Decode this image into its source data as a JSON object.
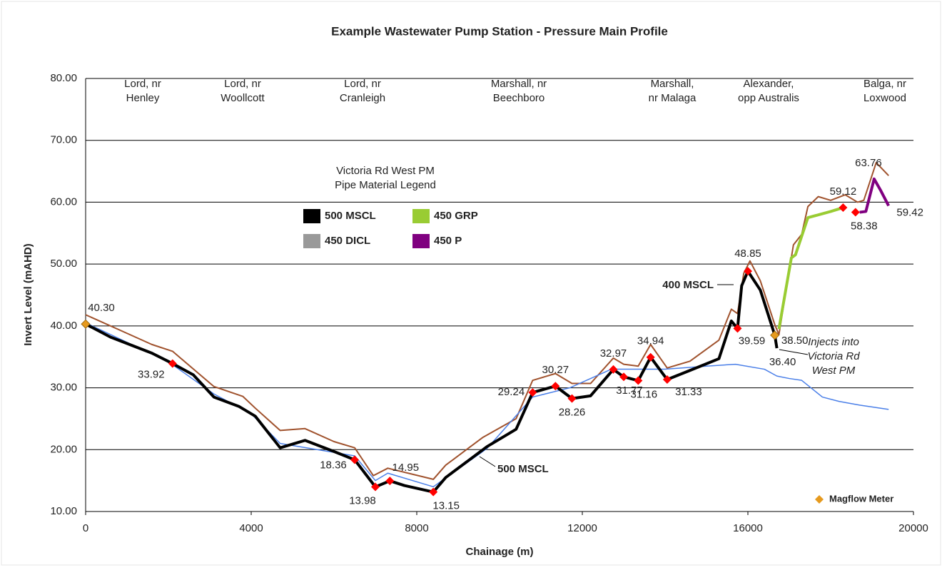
{
  "chart_data": {
    "type": "line",
    "title": "Example Wastewater Pump Station - Pressure Main Profile",
    "xlabel": "Chainage (m)",
    "ylabel": "Invert Level (mAHD)",
    "xlim": [
      0,
      20000
    ],
    "xticks": [
      0,
      4000,
      8000,
      12000,
      16000,
      20000
    ],
    "ylim": [
      10,
      80
    ],
    "yticks": [
      {
        "value": 10,
        "label": "10.00"
      },
      {
        "value": 20,
        "label": "20.00"
      },
      {
        "value": 30,
        "label": "30.00"
      },
      {
        "value": 40,
        "label": "40.00"
      },
      {
        "value": 50,
        "label": "50.00"
      },
      {
        "value": 60,
        "label": "60.00"
      },
      {
        "value": 70,
        "label": "70.00"
      },
      {
        "value": 80,
        "label": "80.00"
      }
    ],
    "grid": true,
    "section_labels": [
      [
        "Lord, nr",
        "Henley"
      ],
      [
        "Lord, nr",
        "Woollcott"
      ],
      [
        "Lord, nr",
        "Cranleigh"
      ],
      [
        "Marshall, nr",
        "Beechboro"
      ],
      [
        "Marshall,",
        "nr Malaga"
      ],
      [
        "Alexander,",
        "opp Australis"
      ],
      [
        "Balga, nr",
        "Loxwood"
      ]
    ],
    "series": [
      {
        "color": "#a0522d",
        "width": 2,
        "x": [
          0,
          1000,
          1600,
          2100,
          3100,
          3800,
          4100,
          4700,
          5300,
          6000,
          6500,
          6950,
          7300,
          8400,
          8700,
          9600,
          10400,
          10800,
          11350,
          11750,
          12200,
          12750,
          13000,
          13350,
          13650,
          14050,
          14600,
          15300,
          15600,
          15750,
          15900,
          16050,
          16300,
          16650,
          16750,
          17100,
          17300,
          17450,
          17700,
          18000,
          18350,
          18650,
          18800,
          19100,
          19400
        ],
        "values": [
          41.8,
          38.8,
          37,
          35.9,
          30.2,
          28.6,
          26.7,
          23.1,
          23.4,
          21.3,
          20.3,
          15.8,
          17,
          15.2,
          17.5,
          22,
          25,
          31.2,
          32.3,
          30.7,
          30.7,
          34.8,
          33.8,
          33.5,
          37,
          33.2,
          34.3,
          37.7,
          42.7,
          42,
          48.5,
          50.5,
          47.3,
          40.2,
          38.6,
          53.1,
          54.8,
          59.3,
          60.9,
          60.3,
          61.2,
          60,
          60.3,
          66.4,
          64.3
        ]
      },
      {
        "color": "#4a7fe8",
        "width": 1.5,
        "x": [
          0,
          2000,
          3100,
          4000,
          4700,
          6500,
          7000,
          7300,
          8400,
          9700,
          10800,
          11700,
          12700,
          14000,
          15000,
          15700,
          16400,
          16700,
          17000,
          17300,
          17800,
          18200,
          18700,
          19400
        ],
        "values": [
          40.5,
          34.2,
          29,
          25.8,
          21,
          19,
          15,
          16.2,
          14,
          20.2,
          28.5,
          30,
          33,
          33,
          33.5,
          33.8,
          33,
          31.9,
          31.5,
          31.2,
          28.5,
          27.8,
          27.2,
          26.5
        ]
      },
      {
        "name": "500 MSCL",
        "color": "#000000",
        "width": 4,
        "x": [
          0,
          600,
          1600,
          2100,
          2600,
          3100,
          3700,
          4100,
          4700,
          5300,
          6000,
          6500,
          7000,
          7350,
          7700,
          8400,
          8700,
          9300,
          9700,
          10400,
          10800,
          11350,
          11750,
          12200,
          12750,
          13000,
          13350,
          13650,
          14050,
          14600,
          15300,
          15600,
          15750,
          15850,
          16000,
          16300,
          16650,
          16700
        ],
        "values": [
          40.3,
          38.2,
          35.6,
          33.92,
          32.1,
          28.5,
          27,
          25.4,
          20.3,
          21.5,
          19.7,
          18.36,
          13.98,
          14.95,
          14.2,
          13.15,
          15.5,
          18.5,
          20.5,
          23.3,
          29.24,
          30.27,
          28.26,
          28.7,
          32.97,
          31.77,
          31.16,
          34.94,
          31.33,
          32.8,
          34.7,
          40.8,
          39.59,
          46.5,
          48.85,
          45.8,
          38.5,
          36.4
        ]
      },
      {
        "name": "450 GRP",
        "color": "#99cc33",
        "width": 4,
        "x": [
          16750,
          17050,
          17150,
          17450,
          18000,
          18300
        ],
        "values": [
          39.5,
          51,
          51.5,
          57.5,
          58.5,
          59.12
        ]
      },
      {
        "name": "450 P",
        "color": "#800080",
        "width": 4,
        "x": [
          18700,
          18850,
          19050,
          19200,
          19400
        ],
        "values": [
          58.38,
          58.5,
          63.76,
          62,
          59.42
        ]
      }
    ],
    "pipe_legend": {
      "title": [
        "Victoria Rd West PM",
        "Pipe Material Legend"
      ],
      "items": [
        {
          "name": "500 MSCL",
          "color": "#000000"
        },
        {
          "name": "450 GRP",
          "color": "#99cc33"
        },
        {
          "name": "450 DICL",
          "color": "#999999"
        },
        {
          "name": "450 P",
          "color": "#800080"
        }
      ]
    },
    "red_points": {
      "color": "#ff0000",
      "x": [
        2100,
        6500,
        7000,
        7350,
        8400,
        10800,
        11350,
        11750,
        12750,
        13000,
        13350,
        13650,
        14050,
        15750,
        16000,
        18300,
        18600
      ],
      "values": [
        33.92,
        18.36,
        13.98,
        14.95,
        13.15,
        29.24,
        30.27,
        28.26,
        32.97,
        31.77,
        31.16,
        34.94,
        31.33,
        39.59,
        48.85,
        59.12,
        58.38
      ],
      "value_labels": [
        "33.92",
        "18.36",
        "13.98",
        "14.95",
        "13.15",
        "29.24",
        "30.27",
        "28.26",
        "32.97",
        "31.77",
        "31.16",
        "34.94",
        "31.33",
        "39.59",
        "48.85",
        "59.12",
        "58.38"
      ]
    },
    "other_labels": {
      "x": [
        0,
        16650,
        16700,
        19050,
        19400
      ],
      "values": [
        40.3,
        38.5,
        36.4,
        63.76,
        59.42
      ],
      "value_labels": [
        "40.30",
        "38.50",
        "36.40",
        "63.76",
        "59.42"
      ]
    },
    "magflow": {
      "name": "Magflow Meter",
      "color": "#e69a1e",
      "x": [
        0,
        16650
      ],
      "values": [
        40.3,
        38.5
      ]
    },
    "annotations": [
      "400 MSCL",
      "500 MSCL",
      "Injects into",
      "Victoria Rd",
      "West PM"
    ]
  }
}
